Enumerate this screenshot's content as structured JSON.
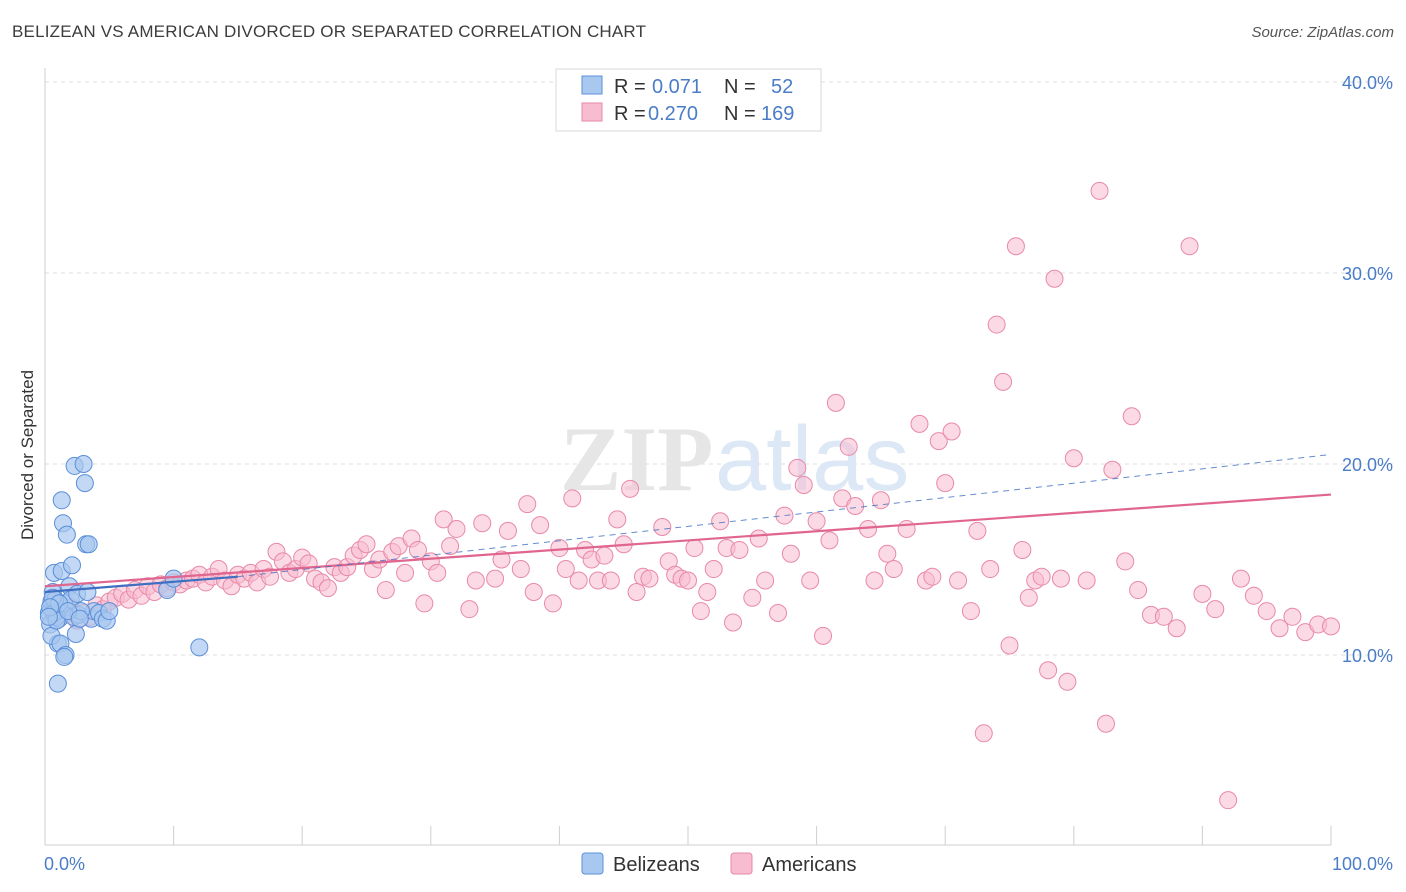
{
  "header": {
    "title": "BELIZEAN VS AMERICAN DIVORCED OR SEPARATED CORRELATION CHART",
    "source": "Source: ZipAtlas.com"
  },
  "colors": {
    "belizeans_fill": "#a8c8f0",
    "belizeans_stroke": "#5b8fd8",
    "belizeans_line": "#3f6fc0",
    "americans_fill": "#f8bcd0",
    "americans_stroke": "#e889a8",
    "americans_line": "#e0668f",
    "tick_label": "#4a7cc8",
    "grid": "#dcdcdc"
  },
  "legend": {
    "r_label": "R =",
    "n_label": "N =",
    "belizeans_r": "0.071",
    "belizeans_n": "52",
    "americans_r": "0.270",
    "americans_n": "169"
  },
  "chart_data": {
    "type": "scatter",
    "title": "BELIZEAN VS AMERICAN DIVORCED OR SEPARATED CORRELATION CHART",
    "ylabel": "Divorced or Separated",
    "xlabel": "",
    "xlim": [
      0,
      100
    ],
    "ylim": [
      0,
      41
    ],
    "x_tick_labels": [
      "0.0%",
      "100.0%"
    ],
    "y_ticks": [
      10,
      20,
      30,
      40
    ],
    "y_tick_labels": [
      "10.0%",
      "20.0%",
      "30.0%",
      "40.0%"
    ],
    "grid": true,
    "legend_position": "top-center",
    "watermark": "ZIPatlas",
    "series": [
      {
        "name": "Belizeans",
        "R": 0.071,
        "N": 52,
        "trend_solid": [
          [
            0,
            13.3
          ],
          [
            15,
            14.1
          ]
        ],
        "trend_dashed": [
          [
            15,
            14.1
          ],
          [
            100,
            20.5
          ]
        ],
        "points": [
          [
            0.3,
            12.2
          ],
          [
            0.5,
            12.8
          ],
          [
            0.6,
            13.3
          ],
          [
            0.7,
            14.3
          ],
          [
            0.4,
            11.6
          ],
          [
            0.8,
            12.5
          ],
          [
            1.0,
            10.6
          ],
          [
            1.1,
            11.9
          ],
          [
            0.9,
            12.0
          ],
          [
            1.2,
            12.4
          ],
          [
            0.5,
            11.0
          ],
          [
            0.7,
            12.2
          ],
          [
            1.3,
            14.4
          ],
          [
            1.5,
            12.7
          ],
          [
            1.2,
            10.6
          ],
          [
            1.6,
            10.0
          ],
          [
            1.4,
            16.9
          ],
          [
            1.3,
            18.1
          ],
          [
            1.7,
            16.3
          ],
          [
            1.9,
            13.6
          ],
          [
            2.0,
            12.9
          ],
          [
            2.2,
            12.0
          ],
          [
            2.1,
            14.7
          ],
          [
            2.3,
            19.9
          ],
          [
            2.4,
            11.1
          ],
          [
            2.6,
            12.1
          ],
          [
            2.5,
            13.2
          ],
          [
            3.0,
            20.0
          ],
          [
            3.1,
            19.0
          ],
          [
            3.2,
            15.8
          ],
          [
            3.4,
            15.8
          ],
          [
            3.6,
            11.9
          ],
          [
            3.8,
            12.3
          ],
          [
            4.2,
            12.2
          ],
          [
            4.5,
            11.9
          ],
          [
            1.0,
            8.5
          ],
          [
            1.5,
            9.9
          ],
          [
            0.8,
            12.9
          ],
          [
            0.6,
            13.0
          ],
          [
            0.9,
            11.8
          ],
          [
            1.1,
            12.7
          ],
          [
            2.8,
            12.3
          ],
          [
            3.3,
            13.3
          ],
          [
            4.8,
            11.8
          ],
          [
            5.0,
            12.3
          ],
          [
            9.5,
            13.4
          ],
          [
            10.0,
            14.0
          ],
          [
            12.0,
            10.4
          ],
          [
            1.8,
            12.3
          ],
          [
            0.4,
            12.5
          ],
          [
            0.3,
            12.0
          ],
          [
            2.7,
            11.9
          ]
        ]
      },
      {
        "name": "Americans",
        "R": 0.27,
        "N": 169,
        "trend_solid": [
          [
            0,
            13.6
          ],
          [
            100,
            18.4
          ]
        ],
        "points": [
          [
            1.5,
            12.1
          ],
          [
            2.0,
            12.5
          ],
          [
            2.5,
            11.8
          ],
          [
            3.0,
            12.2
          ],
          [
            3.5,
            12.0
          ],
          [
            4.0,
            12.6
          ],
          [
            4.5,
            12.4
          ],
          [
            5.0,
            12.8
          ],
          [
            5.5,
            13.0
          ],
          [
            6.0,
            13.2
          ],
          [
            6.5,
            12.9
          ],
          [
            7.0,
            13.4
          ],
          [
            7.5,
            13.1
          ],
          [
            8.0,
            13.6
          ],
          [
            8.5,
            13.3
          ],
          [
            9.0,
            13.7
          ],
          [
            9.5,
            13.5
          ],
          [
            10.0,
            13.8
          ],
          [
            10.5,
            13.7
          ],
          [
            11.0,
            13.9
          ],
          [
            11.5,
            14.0
          ],
          [
            12.0,
            14.2
          ],
          [
            12.5,
            13.8
          ],
          [
            13.0,
            14.1
          ],
          [
            13.5,
            14.5
          ],
          [
            14.0,
            13.9
          ],
          [
            14.5,
            13.6
          ],
          [
            15.0,
            14.2
          ],
          [
            15.5,
            14.0
          ],
          [
            16.0,
            14.3
          ],
          [
            16.5,
            13.8
          ],
          [
            17.0,
            14.5
          ],
          [
            17.5,
            14.1
          ],
          [
            18.0,
            15.4
          ],
          [
            18.5,
            14.9
          ],
          [
            19.0,
            14.3
          ],
          [
            19.5,
            14.5
          ],
          [
            20.0,
            15.1
          ],
          [
            20.5,
            14.8
          ],
          [
            21.0,
            14.0
          ],
          [
            21.5,
            13.8
          ],
          [
            22.0,
            13.5
          ],
          [
            22.5,
            14.6
          ],
          [
            23.0,
            14.3
          ],
          [
            23.5,
            14.6
          ],
          [
            24.0,
            15.2
          ],
          [
            24.5,
            15.5
          ],
          [
            25.0,
            15.8
          ],
          [
            25.5,
            14.5
          ],
          [
            26.0,
            15.0
          ],
          [
            26.5,
            13.4
          ],
          [
            27.0,
            15.4
          ],
          [
            27.5,
            15.7
          ],
          [
            28.0,
            14.3
          ],
          [
            28.5,
            16.1
          ],
          [
            29.0,
            15.5
          ],
          [
            29.5,
            12.7
          ],
          [
            30.0,
            14.9
          ],
          [
            30.5,
            14.3
          ],
          [
            31.0,
            17.1
          ],
          [
            31.5,
            15.7
          ],
          [
            32.0,
            16.6
          ],
          [
            33.0,
            12.4
          ],
          [
            33.5,
            13.9
          ],
          [
            34.0,
            16.9
          ],
          [
            35.0,
            14.0
          ],
          [
            35.5,
            15.0
          ],
          [
            36.0,
            16.5
          ],
          [
            37.0,
            14.5
          ],
          [
            37.5,
            17.9
          ],
          [
            38.0,
            13.3
          ],
          [
            38.5,
            16.8
          ],
          [
            39.5,
            12.7
          ],
          [
            40.0,
            15.6
          ],
          [
            40.5,
            14.5
          ],
          [
            41.0,
            18.2
          ],
          [
            41.5,
            13.9
          ],
          [
            42.0,
            15.5
          ],
          [
            42.5,
            15.0
          ],
          [
            43.0,
            13.9
          ],
          [
            43.5,
            15.2
          ],
          [
            44.0,
            13.9
          ],
          [
            44.5,
            17.1
          ],
          [
            45.0,
            15.8
          ],
          [
            45.5,
            18.7
          ],
          [
            46.0,
            13.3
          ],
          [
            46.5,
            14.1
          ],
          [
            47.0,
            14.0
          ],
          [
            48.0,
            16.7
          ],
          [
            48.5,
            14.9
          ],
          [
            49.0,
            14.2
          ],
          [
            49.5,
            14.0
          ],
          [
            50.0,
            13.9
          ],
          [
            50.5,
            15.6
          ],
          [
            51.0,
            12.3
          ],
          [
            51.5,
            13.3
          ],
          [
            52.0,
            14.5
          ],
          [
            52.5,
            17.0
          ],
          [
            53.0,
            15.6
          ],
          [
            53.5,
            11.7
          ],
          [
            54.0,
            15.5
          ],
          [
            55.0,
            13.0
          ],
          [
            55.5,
            16.1
          ],
          [
            56.0,
            13.9
          ],
          [
            57.0,
            12.2
          ],
          [
            57.5,
            17.3
          ],
          [
            58.0,
            15.3
          ],
          [
            58.5,
            19.8
          ],
          [
            59.0,
            18.9
          ],
          [
            59.5,
            13.9
          ],
          [
            60.0,
            17.0
          ],
          [
            60.5,
            11.0
          ],
          [
            61.0,
            16.0
          ],
          [
            61.5,
            23.2
          ],
          [
            62.0,
            18.2
          ],
          [
            62.5,
            20.9
          ],
          [
            63.0,
            17.8
          ],
          [
            64.0,
            16.6
          ],
          [
            64.5,
            13.9
          ],
          [
            65.0,
            18.1
          ],
          [
            65.5,
            15.3
          ],
          [
            66.0,
            14.5
          ],
          [
            67.0,
            16.6
          ],
          [
            68.0,
            22.1
          ],
          [
            68.5,
            13.9
          ],
          [
            69.0,
            14.1
          ],
          [
            69.5,
            21.2
          ],
          [
            70.0,
            19.0
          ],
          [
            70.5,
            21.7
          ],
          [
            71.0,
            13.9
          ],
          [
            72.0,
            12.3
          ],
          [
            72.5,
            16.5
          ],
          [
            73.0,
            5.9
          ],
          [
            73.5,
            14.5
          ],
          [
            74.0,
            27.3
          ],
          [
            74.5,
            24.3
          ],
          [
            75.0,
            10.5
          ],
          [
            75.5,
            31.4
          ],
          [
            76.0,
            15.5
          ],
          [
            76.5,
            13.0
          ],
          [
            77.0,
            13.9
          ],
          [
            77.5,
            14.1
          ],
          [
            78.0,
            9.2
          ],
          [
            78.5,
            29.7
          ],
          [
            79.0,
            14.0
          ],
          [
            79.5,
            8.6
          ],
          [
            80.0,
            20.3
          ],
          [
            81.0,
            13.9
          ],
          [
            82.0,
            34.3
          ],
          [
            82.5,
            6.4
          ],
          [
            83.0,
            19.7
          ],
          [
            84.0,
            14.9
          ],
          [
            84.5,
            22.5
          ],
          [
            85.0,
            13.4
          ],
          [
            86.0,
            12.1
          ],
          [
            87.0,
            12.0
          ],
          [
            88.0,
            11.4
          ],
          [
            89.0,
            31.4
          ],
          [
            90.0,
            13.2
          ],
          [
            91.0,
            12.4
          ],
          [
            92.0,
            2.4
          ],
          [
            93.0,
            14.0
          ],
          [
            94.0,
            13.1
          ],
          [
            95.0,
            12.3
          ],
          [
            96.0,
            11.4
          ],
          [
            97.0,
            12.0
          ],
          [
            98.0,
            11.2
          ],
          [
            99.0,
            11.6
          ],
          [
            100.0,
            11.5
          ]
        ]
      }
    ]
  },
  "bottom_legend": {
    "belizeans": "Belizeans",
    "americans": "Americans"
  }
}
